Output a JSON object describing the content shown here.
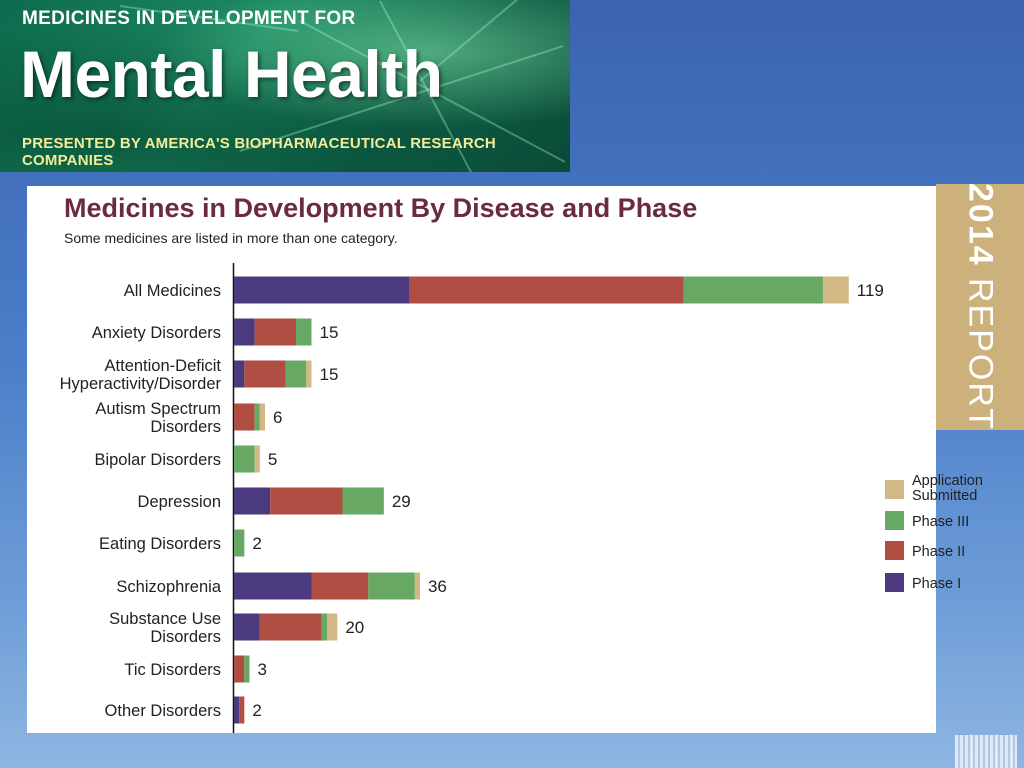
{
  "banner": {
    "supertitle": "MEDICINES IN DEVELOPMENT FOR",
    "title": "Mental Health",
    "subtitle": "PRESENTED BY AMERICA'S BIOPHARMACEUTICAL RESEARCH COMPANIES"
  },
  "report_tab": {
    "year": "2014",
    "word": "REPORT"
  },
  "colors": {
    "phase_1": "#4b3a7e",
    "phase_2": "#b04e43",
    "phase_3": "#67a864",
    "application_submitted": "#d2b884",
    "title": "#6b2a3d",
    "tab": "#cdb17c"
  },
  "chart_data": {
    "type": "bar",
    "orientation": "horizontal",
    "stacked": true,
    "title": "Medicines in Development By Disease and Phase",
    "subtitle": "Some medicines are listed in more than one category.",
    "categories": [
      [
        "All Medicines"
      ],
      [
        "Anxiety Disorders"
      ],
      [
        "Attention-Deficit",
        "Hyperactivity/Disorder"
      ],
      [
        "Autism Spectrum",
        "Disorders"
      ],
      [
        "Bipolar Disorders"
      ],
      [
        "Depression"
      ],
      [
        "Eating Disorders"
      ],
      [
        "Schizophrenia"
      ],
      [
        "Substance Use",
        "Disorders"
      ],
      [
        "Tic Disorders"
      ],
      [
        "Other Disorders"
      ]
    ],
    "series": [
      {
        "name": "Phase I",
        "color": "#4b3a7e",
        "values": [
          34,
          4,
          2,
          0,
          0,
          7,
          0,
          15,
          5,
          0,
          1
        ]
      },
      {
        "name": "Phase II",
        "color": "#b04e43",
        "values": [
          53,
          8,
          8,
          4,
          0,
          14,
          0,
          11,
          12,
          2,
          1
        ]
      },
      {
        "name": "Phase III",
        "color": "#67a864",
        "values": [
          27,
          3,
          4,
          1,
          4,
          8,
          2,
          9,
          1,
          1,
          0
        ]
      },
      {
        "name": "Application Submitted",
        "color": "#d2b884",
        "values": [
          5,
          0,
          1,
          1,
          1,
          0,
          0,
          1,
          2,
          0,
          0
        ]
      }
    ],
    "totals": [
      "119",
      "15",
      "15",
      "6",
      "5",
      "29",
      "2",
      "36",
      "20",
      "3",
      "2"
    ],
    "legend": {
      "placement": "right",
      "items": [
        {
          "label": [
            "Application",
            "Submitted"
          ],
          "color": "#d2b884"
        },
        {
          "label": [
            "Phase III"
          ],
          "color": "#67a864"
        },
        {
          "label": [
            "Phase II"
          ],
          "color": "#b04e43"
        },
        {
          "label": [
            "Phase I"
          ],
          "color": "#4b3a7e"
        }
      ]
    },
    "xlim": [
      0,
      125
    ],
    "grid": false
  }
}
